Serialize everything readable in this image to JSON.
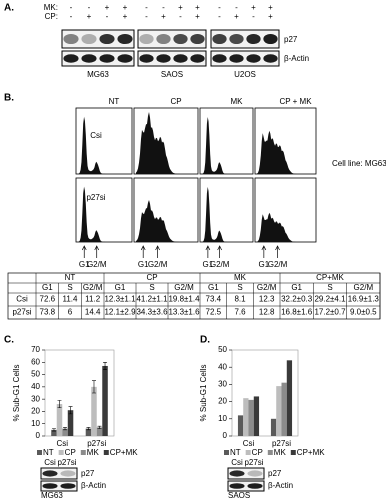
{
  "panel_a": {
    "label": "A.",
    "treatments": [
      {
        "name": "MK:",
        "signs": [
          "-",
          "-",
          "+",
          "+"
        ]
      },
      {
        "name": "CP:",
        "signs": [
          "-",
          "+",
          "-",
          "+"
        ]
      }
    ],
    "proteins": [
      "p27",
      "β-Actin"
    ],
    "cell_lines": [
      "MG63",
      "SAOS",
      "U2OS"
    ]
  },
  "panel_b": {
    "label": "B.",
    "conditions": [
      "NT",
      "CP",
      "MK",
      "CP + MK"
    ],
    "rows": [
      "Csi",
      "p27si"
    ],
    "cell_line_note": "Cell line: MG63",
    "markers": [
      "G1",
      "G2/M"
    ],
    "table": {
      "groups": [
        "NT",
        "CP",
        "MK",
        "CP+MK"
      ],
      "phases": [
        "G1",
        "S",
        "G2/M"
      ],
      "rows": [
        {
          "name": "Csi",
          "cells": [
            72.6,
            11.4,
            11.2,
            "12.3±1.1",
            "41.2±1.1",
            "19.8±1.4",
            73.4,
            8.1,
            12.3,
            "32.2±0.3",
            "29.2±4.1",
            "16.9±1.3"
          ]
        },
        {
          "name": "p27si",
          "cells": [
            73.8,
            6,
            14.4,
            "12.1±2.9",
            "34.3±3.6",
            "13.3±1.6",
            72.5,
            7.6,
            12.8,
            "16.8±1.6",
            "17.2±0.7",
            "9.0±0.5"
          ]
        }
      ]
    }
  },
  "panel_c": {
    "label": "C.",
    "blot_lanes": [
      "Csi",
      "p27si"
    ],
    "proteins": [
      "p27",
      "β-Actin"
    ],
    "cell_line": "MG63"
  },
  "panel_d": {
    "label": "D.",
    "blot_lanes": [
      "Csi",
      "p27si"
    ],
    "proteins": [
      "p27",
      "β-Actin"
    ],
    "cell_line": "SAOS"
  },
  "chart_data": [
    {
      "type": "bar",
      "y_label": "% Sub-G1 Cells",
      "categories": [
        "Csi",
        "p27si"
      ],
      "ylim": [
        0,
        70
      ],
      "yticks": [
        0,
        10,
        20,
        30,
        40,
        50,
        60,
        70
      ],
      "grid": false,
      "series": [
        {
          "name": "NT",
          "color": "#5a5a5a",
          "values": [
            5,
            6
          ],
          "errors": [
            1,
            1
          ]
        },
        {
          "name": "CP",
          "color": "#bdbdbd",
          "values": [
            26,
            40
          ],
          "errors": [
            3,
            5
          ]
        },
        {
          "name": "MK",
          "color": "#8c8c8c",
          "values": [
            6,
            7
          ],
          "errors": [
            1,
            1
          ]
        },
        {
          "name": "CP+MK",
          "color": "#3a3a3a",
          "values": [
            21,
            57
          ],
          "errors": [
            3,
            3
          ]
        }
      ]
    },
    {
      "type": "bar",
      "y_label": "% Sub-G1 Cells",
      "categories": [
        "Csi",
        "p27si"
      ],
      "ylim": [
        0,
        50
      ],
      "yticks": [
        0,
        10,
        20,
        30,
        40,
        50
      ],
      "grid": false,
      "series": [
        {
          "name": "NT",
          "color": "#5a5a5a",
          "values": [
            12,
            10
          ]
        },
        {
          "name": "CP",
          "color": "#bdbdbd",
          "values": [
            22,
            29
          ]
        },
        {
          "name": "MK",
          "color": "#8c8c8c",
          "values": [
            21,
            31
          ]
        },
        {
          "name": "CP+MK",
          "color": "#3a3a3a",
          "values": [
            23,
            44
          ]
        }
      ]
    }
  ]
}
